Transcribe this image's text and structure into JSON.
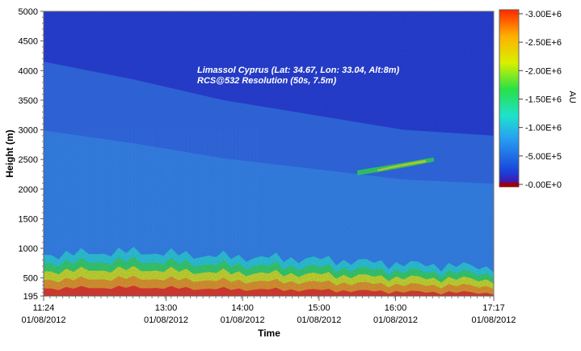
{
  "chart_data": {
    "type": "heatmap",
    "title": "",
    "annotation_lines": [
      "Limassol Cyprus (Lat: 34.67, Lon: 33.04, Alt:8m)",
      "RCS@532 Resolution (50s, 7.5m)"
    ],
    "xlabel": "Time",
    "ylabel": "Height (m)",
    "colorbar_label": "AU",
    "ylim": [
      195,
      5000
    ],
    "y_ticks": [
      "5000",
      "4500",
      "4000",
      "3500",
      "3000",
      "2500",
      "2000",
      "1500",
      "1000",
      "500",
      "195"
    ],
    "y_tick_values": [
      5000,
      4500,
      4000,
      3500,
      3000,
      2500,
      2000,
      1500,
      1000,
      500,
      195
    ],
    "x_ticks": [
      {
        "time": "11:24",
        "date": "01/08/2012",
        "hour": 11.4
      },
      {
        "time": "13:00",
        "date": "01/08/2012",
        "hour": 13.0
      },
      {
        "time": "14:00",
        "date": "01/08/2012",
        "hour": 14.0
      },
      {
        "time": "15:00",
        "date": "01/08/2012",
        "hour": 15.0
      },
      {
        "time": "16:00",
        "date": "01/08/2012",
        "hour": 16.0
      },
      {
        "time": "17:17",
        "date": "01/08/2012",
        "hour": 17.283
      }
    ],
    "xlim_hours": [
      11.4,
      17.283
    ],
    "colorbar": {
      "ticks": [
        "3.00E+6",
        "2.50E+6",
        "2.00E+6",
        "1.50E+6",
        "1.00E+6",
        "5.00E+5",
        "0.00E+0"
      ],
      "values": [
        3000000,
        2500000,
        2000000,
        1500000,
        1000000,
        500000,
        0
      ],
      "range": [
        0,
        3000000
      ],
      "colors": [
        "#5a0090",
        "#1a3fd8",
        "#27a3f2",
        "#1ee2cc",
        "#28e048",
        "#d8f000",
        "#ffb000",
        "#ff2800"
      ]
    },
    "features": [
      {
        "name": "boundary layer",
        "from_hour": 11.4,
        "to_hour": 17.283,
        "height_top_m": [
          850,
          900,
          820,
          780,
          700,
          650
        ],
        "value_approx": 3000000
      },
      {
        "name": "aerosol layer",
        "from_hour": 15.5,
        "to_hour": 16.5,
        "height_m": 2450,
        "value_approx": 1700000
      },
      {
        "name": "upper layer top",
        "from_hour": 11.4,
        "to_hour": 17.283,
        "height_m": [
          4150,
          3850,
          3500,
          3250,
          3000,
          2900
        ],
        "value_approx": 700000
      }
    ]
  }
}
